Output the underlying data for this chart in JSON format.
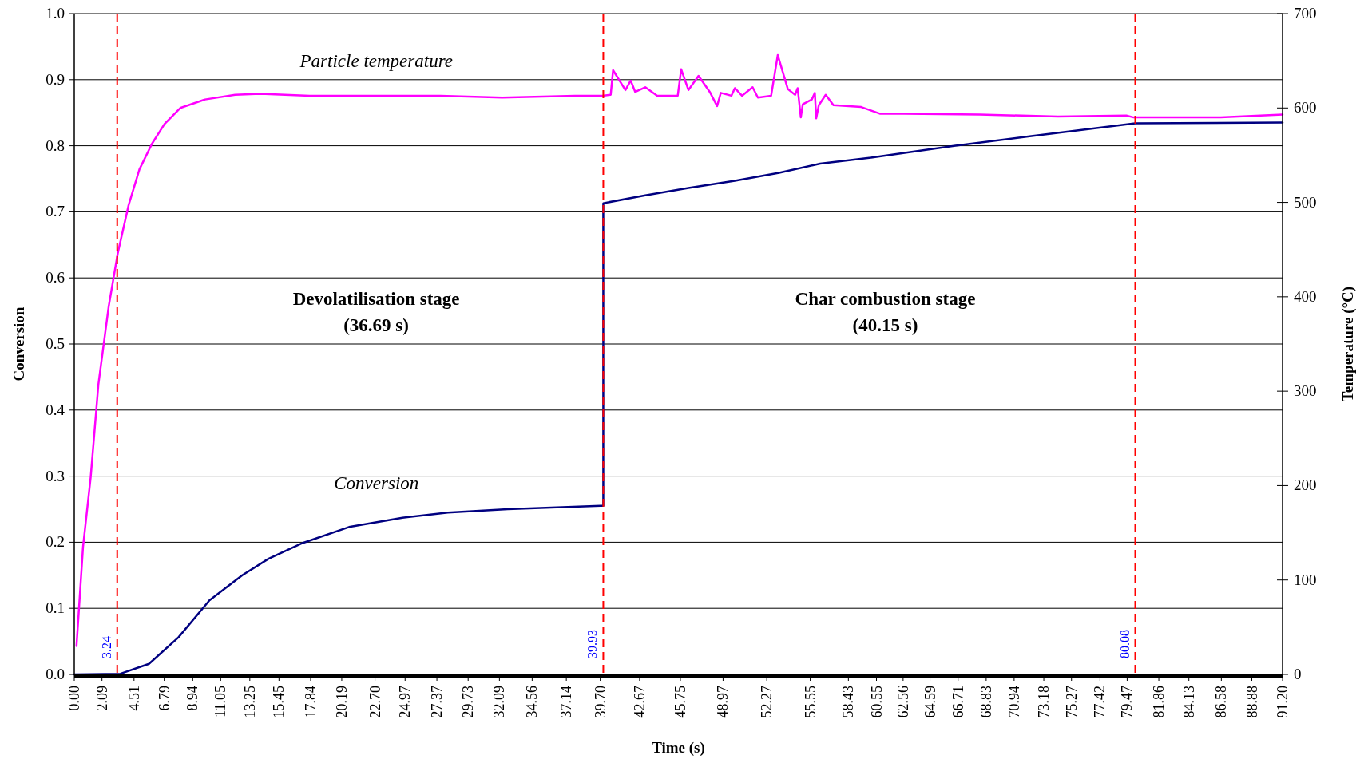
{
  "chart_data": {
    "type": "line",
    "xlabel": "Time (s)",
    "ylabel": "Conversion",
    "y2label": "Temperature (°C)",
    "xlim": [
      0,
      91.2
    ],
    "xticks": [
      {
        "value": 0,
        "label": "0.00"
      },
      2.09,
      4.51,
      6.79,
      8.94,
      11.05,
      13.25,
      15.45,
      17.84,
      20.19,
      {
        "value": 22.7,
        "label": "22.70"
      },
      24.97,
      27.37,
      29.73,
      32.09,
      34.56,
      37.14,
      {
        "value": 39.7,
        "label": "39.70"
      },
      42.67,
      45.75,
      48.97,
      52.27,
      55.55,
      58.43,
      60.55,
      62.56,
      64.59,
      66.71,
      68.83,
      70.94,
      73.18,
      75.27,
      77.42,
      79.47,
      81.86,
      84.13,
      86.58,
      88.88,
      {
        "value": 91.2,
        "label": "91.20"
      }
    ],
    "ylim": [
      0,
      1
    ],
    "yticks": [
      {
        "value": 0,
        "label": "0.0"
      },
      0.1,
      0.2,
      0.3,
      0.4,
      0.5,
      0.6,
      0.7,
      0.8,
      0.9,
      {
        "value": 1,
        "label": "1.0"
      }
    ],
    "y2lim": [
      0,
      700
    ],
    "y2ticks": [
      0,
      100,
      200,
      300,
      400,
      500,
      600,
      700
    ],
    "grid": "y",
    "marker": "none",
    "line_style": "solid",
    "series": [
      {
        "name": "Particle temperature",
        "color": "#ff00ff",
        "axis": "y2",
        "x": [
          0.17,
          0.66,
          1.24,
          1.82,
          2.6,
          3.28,
          4.1,
          4.92,
          5.86,
          6.81,
          8.0,
          9.87,
          12.14,
          14.04,
          17.77,
          21.07,
          27.63,
          32.3,
          37.8,
          39.88,
          40.49,
          40.67,
          41.6,
          42.0,
          42.34,
          43.1,
          44.0,
          45.0,
          45.55,
          45.81,
          46.36,
          47.12,
          47.97,
          48.52,
          48.8,
          49.6,
          49.86,
          50.4,
          51.2,
          51.6,
          52.6,
          53.1,
          53.86,
          54.41,
          54.6,
          54.84,
          54.99,
          55.67,
          55.9,
          56.0,
          56.2,
          56.72,
          57.3,
          59.4,
          60.8,
          62.62,
          68.34,
          74.26,
          79.41,
          79.96,
          86.53,
          91.2
        ],
        "values": [
          30,
          135,
          209,
          307,
          390,
          446,
          497,
          535,
          562,
          583,
          600,
          609,
          614,
          615,
          613,
          613,
          613,
          611,
          613,
          613,
          614,
          640,
          619,
          629,
          617,
          622,
          613,
          613,
          613,
          641,
          619,
          634,
          617,
          602,
          616,
          613,
          621,
          613,
          622,
          611,
          613,
          656,
          620,
          614,
          621,
          590,
          604,
          609,
          616,
          589,
          603,
          614,
          603,
          601,
          594,
          594,
          593,
          591,
          592,
          590,
          590,
          593
        ]
      },
      {
        "name": "Conversion",
        "color": "#000080",
        "x": [
          0,
          3.48,
          5.64,
          7.86,
          10.2,
          12.68,
          14.66,
          17.26,
          20.74,
          24.77,
          28.2,
          32.71,
          39.72,
          39.93,
          39.93,
          43.1,
          46.36,
          49.86,
          53.2,
          56.3,
          60.13,
          66.51,
          72.0,
          80.08,
          91.2
        ],
        "values": [
          0,
          0.001,
          0.016,
          0.056,
          0.112,
          0.15,
          0.175,
          0.199,
          0.223,
          0.237,
          0.245,
          0.25,
          0.255,
          0.255,
          0.713,
          0.725,
          0.736,
          0.747,
          0.759,
          0.773,
          0.782,
          0.8,
          0.814,
          0.834,
          0.835
        ]
      }
    ],
    "ref_lines": [
      {
        "axis": "x",
        "value": 3.24,
        "label": "3.24",
        "color": "#ff0000",
        "line_style": "dashed"
      },
      {
        "axis": "x",
        "value": 39.93,
        "label": "39.93",
        "color": "#ff0000",
        "line_style": "dashed"
      },
      {
        "axis": "x",
        "value": 80.08,
        "label": "80.08",
        "color": "#ff0000",
        "line_style": "dashed"
      }
    ],
    "annotations": [
      "Devolatilisation stage\n(36.69 s)",
      "Char combustion stage\n(40.15 s)"
    ]
  }
}
